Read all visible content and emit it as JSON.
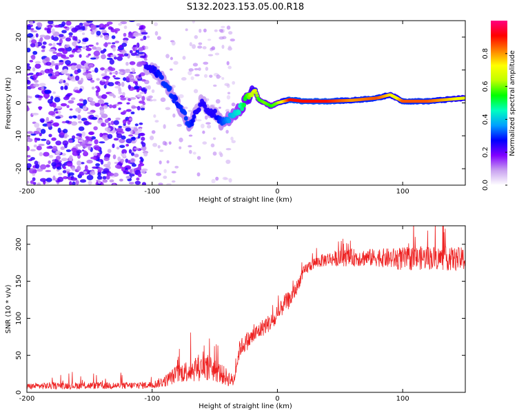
{
  "title": "S132.2023.153.05.00.R18",
  "chart_data": [
    {
      "type": "heatmap",
      "name": "spectrogram",
      "xlabel": "Height of straight line (km)",
      "ylabel": "Frequency (Hz)",
      "xlim": [
        -200,
        150
      ],
      "ylim": [
        -25,
        25
      ],
      "xticks": [
        -200,
        -100,
        0,
        100
      ],
      "yticks": [
        -20,
        -10,
        0,
        10,
        20
      ],
      "colorbar": {
        "label": "Normalized spectral amplitude",
        "range": [
          0,
          1
        ],
        "ticks": [
          "0.0",
          "0.2",
          "0.4",
          "0.6",
          "0.8"
        ],
        "colors": [
          "#ffffff",
          "#c8a0f0",
          "#8000ff",
          "#0000ff",
          "#00a0ff",
          "#00ffc0",
          "#00ff00",
          "#c0ff00",
          "#ffff00",
          "#ff8000",
          "#ff0000",
          "#ff0080"
        ]
      },
      "ridge": {
        "description_points_x": [
          -105,
          -100,
          -95,
          -90,
          -85,
          -80,
          -75,
          -70,
          -65,
          -60,
          -55,
          -50,
          -45,
          -40,
          -35,
          -30,
          -25,
          -20,
          -18,
          -15,
          -10,
          -5,
          0,
          10,
          20,
          40,
          60,
          80,
          90,
          95,
          100,
          120,
          150
        ],
        "description_points_y": [
          11,
          10,
          9,
          6,
          3,
          0,
          -3,
          -7,
          -3,
          1,
          -3,
          -3,
          -6,
          -5,
          -4,
          -2,
          1,
          3,
          4,
          1,
          0,
          -1,
          0,
          1,
          0.5,
          0.5,
          0.8,
          1.5,
          2.5,
          1.5,
          0.5,
          0.5,
          1.5
        ],
        "amplitude": [
          0.25,
          0.25,
          0.28,
          0.3,
          0.3,
          0.28,
          0.3,
          0.3,
          0.25,
          0.25,
          0.25,
          0.25,
          0.3,
          0.35,
          0.4,
          0.45,
          0.55,
          0.65,
          0.7,
          0.55,
          0.6,
          0.55,
          0.6,
          0.9,
          0.9,
          0.9,
          0.8,
          0.85,
          0.75,
          0.7,
          0.85,
          0.85,
          0.7
        ]
      }
    },
    {
      "type": "line",
      "name": "snr",
      "xlabel": "Height of straight line (km)",
      "ylabel": "SNR (10 * v/v)",
      "xlim": [
        -200,
        150
      ],
      "ylim": [
        0,
        225
      ],
      "xticks": [
        -200,
        -100,
        0,
        100
      ],
      "yticks": [
        0,
        50,
        100,
        150,
        200
      ],
      "color": "#ee2222",
      "series": [
        {
          "x": [
            -200,
            -180,
            -160,
            -140,
            -120,
            -100,
            -90,
            -80,
            -70,
            -60,
            -50,
            -40,
            -35,
            -30,
            -20,
            -10,
            0,
            5,
            10,
            15,
            20,
            25,
            30,
            40,
            60,
            80,
            100,
            120,
            140,
            150
          ],
          "values": [
            8,
            9,
            9,
            9,
            9,
            10,
            15,
            25,
            30,
            35,
            30,
            20,
            15,
            60,
            75,
            90,
            100,
            120,
            125,
            140,
            160,
            170,
            175,
            180,
            182,
            182,
            180,
            182,
            180,
            180
          ],
          "noise": [
            5,
            6,
            6,
            6,
            6,
            6,
            10,
            15,
            20,
            25,
            20,
            15,
            10,
            15,
            15,
            15,
            15,
            15,
            15,
            12,
            10,
            10,
            10,
            12,
            15,
            15,
            20,
            20,
            20,
            20
          ]
        }
      ]
    }
  ]
}
